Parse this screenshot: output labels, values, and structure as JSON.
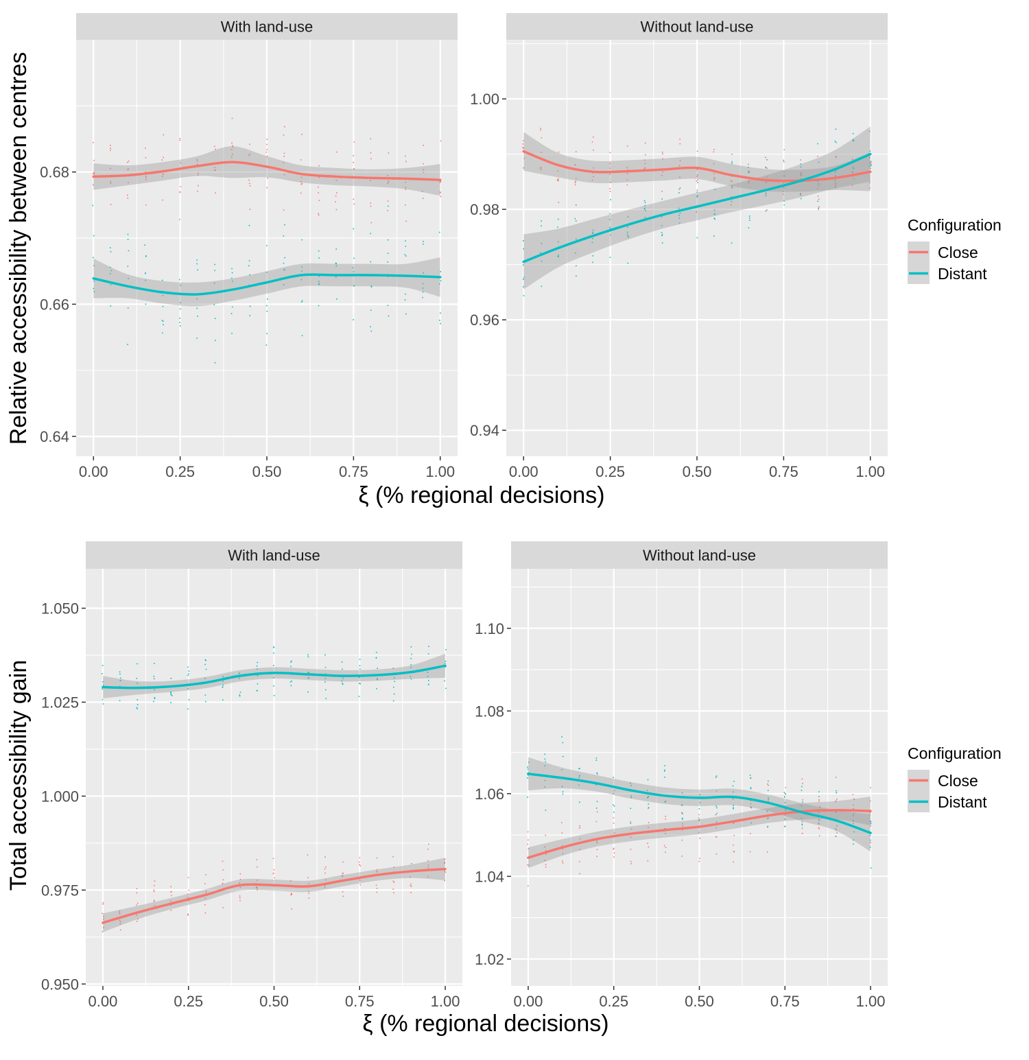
{
  "figure": {
    "top_row": {
      "ylabel": "Relative accessibility between centres",
      "xlabel": "ξ (% regional decisions)",
      "legend": {
        "title": "Configuration",
        "items": [
          "Close",
          "Distant"
        ]
      }
    },
    "bottom_row": {
      "ylabel": "Total accessibility gain",
      "xlabel": "ξ (% regional decisions)",
      "legend": {
        "title": "Configuration",
        "items": [
          "Close",
          "Distant"
        ]
      }
    }
  },
  "colors": {
    "close": "#F8766D",
    "distant": "#00BFC4",
    "panel_bg": "#EBEBEB",
    "strip_bg": "#D9D9D9",
    "band": "#999999"
  },
  "chart_data": [
    {
      "id": "top-left",
      "type": "line",
      "title": "With land-use",
      "xlabel": "ξ (% regional decisions)",
      "ylabel": "Relative accessibility between centres",
      "xlim": [
        -0.05,
        1.05
      ],
      "ylim": [
        0.637,
        0.7
      ],
      "xticks": [
        0,
        0.25,
        0.5,
        0.75,
        1
      ],
      "xtick_labels": [
        "0.00",
        "0.25",
        "0.50",
        "0.75",
        "1.00"
      ],
      "yticks": [
        0.64,
        0.66,
        0.68
      ],
      "ytick_labels": [
        "0.64",
        "0.66",
        "0.68"
      ],
      "series": [
        {
          "name": "Close",
          "x": [
            0,
            0.1,
            0.2,
            0.3,
            0.4,
            0.5,
            0.6,
            0.7,
            0.8,
            0.9,
            1.0
          ],
          "y": [
            0.6793,
            0.6795,
            0.6801,
            0.6809,
            0.6815,
            0.6808,
            0.6797,
            0.6793,
            0.6791,
            0.679,
            0.6788
          ],
          "band": [
            0.002,
            0.0015,
            0.0014,
            0.0015,
            0.0024,
            0.0016,
            0.0013,
            0.0013,
            0.0013,
            0.0016,
            0.0024
          ],
          "spread": 0.01
        },
        {
          "name": "Distant",
          "x": [
            0,
            0.1,
            0.2,
            0.3,
            0.4,
            0.5,
            0.6,
            0.7,
            0.8,
            0.9,
            1.0
          ],
          "y": [
            0.6639,
            0.6627,
            0.6618,
            0.6615,
            0.6622,
            0.6633,
            0.6644,
            0.6644,
            0.6644,
            0.6643,
            0.6641
          ],
          "band": [
            0.003,
            0.0018,
            0.0017,
            0.0018,
            0.0017,
            0.0017,
            0.0017,
            0.0017,
            0.0017,
            0.0018,
            0.003
          ],
          "spread": 0.012
        }
      ]
    },
    {
      "id": "top-right",
      "type": "line",
      "title": "Without land-use",
      "xlabel": "ξ (% regional decisions)",
      "ylabel": "Relative accessibility between centres",
      "xlim": [
        -0.05,
        1.05
      ],
      "ylim": [
        0.9353,
        1.0107
      ],
      "xticks": [
        0,
        0.25,
        0.5,
        0.75,
        1
      ],
      "xtick_labels": [
        "0.00",
        "0.25",
        "0.50",
        "0.75",
        "1.00"
      ],
      "yticks": [
        0.94,
        0.96,
        0.98,
        1.0
      ],
      "ytick_labels": [
        "0.94",
        "0.96",
        "0.98",
        "1.00"
      ],
      "series": [
        {
          "name": "Close",
          "x": [
            0,
            0.1,
            0.2,
            0.3,
            0.4,
            0.5,
            0.6,
            0.7,
            0.8,
            0.9,
            1.0
          ],
          "y": [
            0.9905,
            0.988,
            0.9868,
            0.9869,
            0.9872,
            0.9875,
            0.9862,
            0.9853,
            0.9852,
            0.9857,
            0.9868
          ],
          "band": [
            0.0035,
            0.0022,
            0.002,
            0.002,
            0.002,
            0.002,
            0.002,
            0.002,
            0.002,
            0.0022,
            0.0035
          ],
          "spread": 0.008
        },
        {
          "name": "Distant",
          "x": [
            0,
            0.1,
            0.2,
            0.3,
            0.4,
            0.5,
            0.6,
            0.7,
            0.8,
            0.9,
            1.0
          ],
          "y": [
            0.9705,
            0.973,
            0.9752,
            0.9772,
            0.979,
            0.9805,
            0.982,
            0.9835,
            0.9852,
            0.9873,
            0.99
          ],
          "band": [
            0.005,
            0.0035,
            0.003,
            0.0027,
            0.0025,
            0.0025,
            0.0025,
            0.0027,
            0.003,
            0.0035,
            0.005
          ],
          "spread": 0.01
        }
      ]
    },
    {
      "id": "bottom-left",
      "type": "line",
      "title": "With land-use",
      "xlabel": "ξ (% regional decisions)",
      "ylabel": "Total accessibility gain",
      "xlim": [
        -0.05,
        1.05
      ],
      "ylim": [
        0.9495,
        1.0605
      ],
      "xticks": [
        0,
        0.25,
        0.5,
        0.75,
        1
      ],
      "xtick_labels": [
        "0.00",
        "0.25",
        "0.50",
        "0.75",
        "1.00"
      ],
      "yticks": [
        0.95,
        0.975,
        1.0,
        1.025,
        1.05
      ],
      "ytick_labels": [
        "0.950",
        "0.975",
        "1.000",
        "1.025",
        "1.050"
      ],
      "series": [
        {
          "name": "Close",
          "x": [
            0,
            0.1,
            0.2,
            0.3,
            0.4,
            0.5,
            0.6,
            0.7,
            0.8,
            0.9,
            1.0
          ],
          "y": [
            0.9663,
            0.969,
            0.9714,
            0.9737,
            0.9763,
            0.9763,
            0.976,
            0.9775,
            0.979,
            0.98,
            0.9806
          ],
          "band": [
            0.0025,
            0.0018,
            0.0015,
            0.0015,
            0.0015,
            0.0015,
            0.0015,
            0.0015,
            0.0015,
            0.0018,
            0.003
          ],
          "spread": 0.01
        },
        {
          "name": "Distant",
          "x": [
            0,
            0.1,
            0.2,
            0.3,
            0.4,
            0.5,
            0.6,
            0.7,
            0.8,
            0.9,
            1.0
          ],
          "y": [
            1.029,
            1.0288,
            1.0292,
            1.0302,
            1.032,
            1.0328,
            1.0324,
            1.032,
            1.0322,
            1.033,
            1.0347
          ],
          "band": [
            0.003,
            0.0018,
            0.0015,
            0.0015,
            0.0015,
            0.0015,
            0.0015,
            0.0015,
            0.0015,
            0.0018,
            0.0032
          ],
          "spread": 0.01
        }
      ]
    },
    {
      "id": "bottom-right",
      "type": "line",
      "title": "Without land-use",
      "xlabel": "ξ (% regional decisions)",
      "ylabel": "Total accessibility gain",
      "xlim": [
        -0.05,
        1.05
      ],
      "ylim": [
        1.0135,
        1.1144
      ],
      "xticks": [
        0,
        0.25,
        0.5,
        0.75,
        1
      ],
      "xtick_labels": [
        "0.00",
        "0.25",
        "0.50",
        "0.75",
        "1.00"
      ],
      "yticks": [
        1.02,
        1.04,
        1.06,
        1.08,
        1.1
      ],
      "ytick_labels": [
        "1.02",
        "1.04",
        "1.06",
        "1.08",
        "1.10"
      ],
      "series": [
        {
          "name": "Close",
          "x": [
            0,
            0.1,
            0.2,
            0.3,
            0.4,
            0.5,
            0.6,
            0.7,
            0.8,
            0.9,
            1.0
          ],
          "y": [
            1.0445,
            1.047,
            1.049,
            1.0503,
            1.0512,
            1.052,
            1.0533,
            1.0547,
            1.0557,
            1.056,
            1.0558
          ],
          "band": [
            0.0025,
            0.002,
            0.0018,
            0.0018,
            0.0018,
            0.0018,
            0.0018,
            0.0018,
            0.002,
            0.0022,
            0.0035
          ],
          "spread": 0.012
        },
        {
          "name": "Distant",
          "x": [
            0,
            0.1,
            0.2,
            0.3,
            0.4,
            0.5,
            0.6,
            0.7,
            0.8,
            0.9,
            1.0
          ],
          "y": [
            1.0648,
            1.0638,
            1.0625,
            1.0608,
            1.0595,
            1.059,
            1.0592,
            1.0578,
            1.0555,
            1.0535,
            1.0505
          ],
          "band": [
            0.004,
            0.0025,
            0.002,
            0.002,
            0.002,
            0.002,
            0.002,
            0.002,
            0.0022,
            0.0025,
            0.0045
          ],
          "spread": 0.012
        }
      ]
    }
  ]
}
